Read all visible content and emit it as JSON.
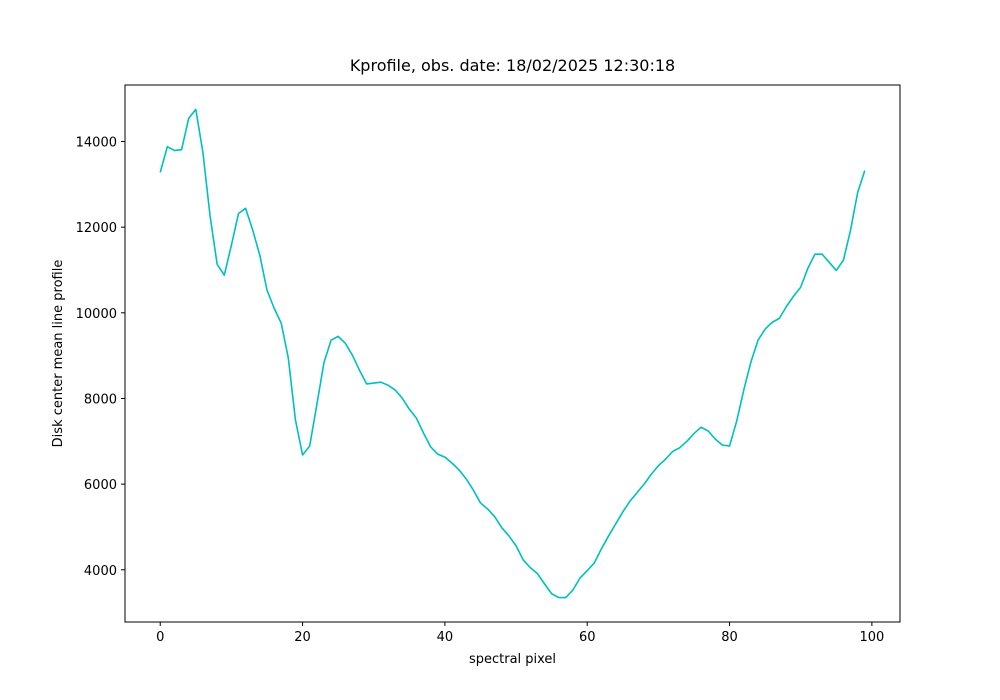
{
  "chart_data": {
    "type": "line",
    "title": "Kprofile, obs. date: 18/02/2025 12:30:18",
    "x_label": "spectral pixel",
    "y_label": "Disk center mean line profile",
    "x": [
      0,
      1,
      2,
      3,
      4,
      5,
      6,
      7,
      8,
      9,
      10,
      11,
      12,
      13,
      14,
      15,
      16,
      17,
      18,
      19,
      20,
      21,
      22,
      23,
      24,
      25,
      26,
      27,
      28,
      29,
      30,
      31,
      32,
      33,
      34,
      35,
      36,
      37,
      38,
      39,
      40,
      41,
      42,
      43,
      44,
      45,
      46,
      47,
      48,
      49,
      50,
      51,
      52,
      53,
      54,
      55,
      56,
      57,
      58,
      59,
      60,
      61,
      62,
      63,
      64,
      65,
      66,
      67,
      68,
      69,
      70,
      71,
      72,
      73,
      74,
      75,
      76,
      77,
      78,
      79,
      80,
      81,
      82,
      83,
      84,
      85,
      86,
      87,
      88,
      89,
      90,
      91,
      92,
      93,
      94,
      95,
      96,
      97,
      98,
      99
    ],
    "series": [
      {
        "name": "Kprofile",
        "color": "#00bfbf",
        "values": [
          13280,
          13880,
          13790,
          13810,
          14540,
          14750,
          13740,
          12270,
          11130,
          10880,
          11580,
          12320,
          12440,
          11930,
          11340,
          10530,
          10110,
          9760,
          8940,
          7500,
          6680,
          6890,
          7850,
          8830,
          9360,
          9450,
          9290,
          9010,
          8660,
          8340,
          8360,
          8380,
          8310,
          8200,
          8010,
          7750,
          7540,
          7190,
          6870,
          6700,
          6630,
          6490,
          6330,
          6120,
          5860,
          5560,
          5420,
          5240,
          4980,
          4790,
          4560,
          4230,
          4050,
          3910,
          3670,
          3440,
          3350,
          3350,
          3530,
          3810,
          3980,
          4160,
          4490,
          4790,
          5070,
          5350,
          5600,
          5800,
          6000,
          6230,
          6430,
          6580,
          6760,
          6850,
          7000,
          7180,
          7330,
          7240,
          7050,
          6910,
          6890,
          7470,
          8200,
          8850,
          9360,
          9620,
          9780,
          9870,
          10150,
          10390,
          10600,
          11040,
          11370,
          11370,
          11180,
          10990,
          11230,
          11930,
          12810,
          13320
        ]
      }
    ],
    "xlim": [
      -4.95,
      103.95
    ],
    "ylim": [
      2780,
      15320
    ],
    "xticks": [
      0,
      20,
      40,
      60,
      80,
      100
    ],
    "yticks": [
      4000,
      6000,
      8000,
      10000,
      12000,
      14000
    ],
    "grid": false
  }
}
